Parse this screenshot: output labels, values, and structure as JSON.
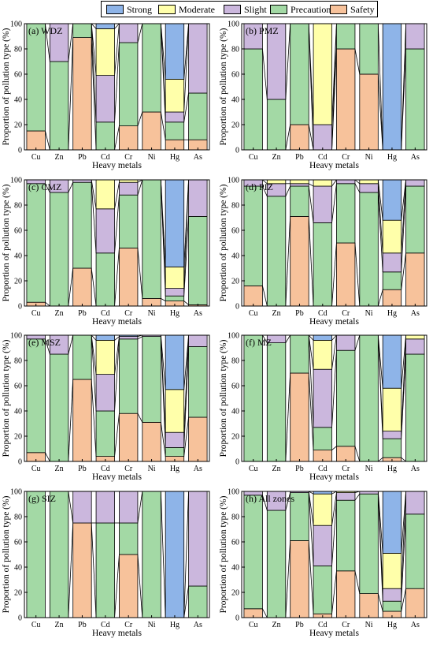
{
  "legend": {
    "items": [
      {
        "label": "Strong",
        "color": "#8EB4E8"
      },
      {
        "label": "Moderate",
        "color": "#FFFFAA"
      },
      {
        "label": "Slight",
        "color": "#CBB7DD"
      },
      {
        "label": "Precaution",
        "color": "#A3D9A5"
      },
      {
        "label": "Safety",
        "color": "#F7C29B"
      }
    ]
  },
  "chart_data": [
    {
      "type": "bar",
      "title": "(a) WDZ",
      "xlabel": "Heavy metals",
      "ylabel": "Proportion of pollution type (%)",
      "ylim": [
        0,
        100
      ],
      "yticks": [
        0,
        20,
        40,
        60,
        80,
        100
      ],
      "categories": [
        "Cu",
        "Zn",
        "Pb",
        "Cd",
        "Cr",
        "Ni",
        "Hg",
        "As"
      ],
      "series": [
        {
          "name": "Safety",
          "values": [
            15,
            0,
            89,
            0,
            19,
            30,
            8,
            8
          ]
        },
        {
          "name": "Precaution",
          "values": [
            85,
            70,
            11,
            22,
            66,
            70,
            14,
            37
          ]
        },
        {
          "name": "Slight",
          "values": [
            0,
            30,
            0,
            37,
            15,
            0,
            8,
            55
          ]
        },
        {
          "name": "Moderate",
          "values": [
            0,
            0,
            0,
            37,
            0,
            0,
            26,
            0
          ]
        },
        {
          "name": "Strong",
          "values": [
            0,
            0,
            0,
            4,
            0,
            0,
            44,
            0
          ]
        }
      ]
    },
    {
      "type": "bar",
      "title": "(b) PMZ",
      "xlabel": "Heavy metals",
      "ylabel": "Proportion of pollution type (%)",
      "ylim": [
        0,
        100
      ],
      "yticks": [
        0,
        20,
        40,
        60,
        80,
        100
      ],
      "categories": [
        "Cu",
        "Zn",
        "Pb",
        "Cd",
        "Cr",
        "Ni",
        "Hg",
        "As"
      ],
      "series": [
        {
          "name": "Safety",
          "values": [
            0,
            0,
            20,
            0,
            80,
            60,
            0,
            0
          ]
        },
        {
          "name": "Precaution",
          "values": [
            80,
            40,
            80,
            0,
            20,
            40,
            0,
            80
          ]
        },
        {
          "name": "Slight",
          "values": [
            20,
            60,
            0,
            20,
            0,
            0,
            0,
            20
          ]
        },
        {
          "name": "Moderate",
          "values": [
            0,
            0,
            0,
            80,
            0,
            0,
            0,
            0
          ]
        },
        {
          "name": "Strong",
          "values": [
            0,
            0,
            0,
            0,
            0,
            0,
            100,
            0
          ]
        }
      ]
    },
    {
      "type": "bar",
      "title": "(c) CMZ",
      "xlabel": "Heavy metals",
      "ylabel": "Proportion of pollution type (%)",
      "ylim": [
        0,
        100
      ],
      "yticks": [
        0,
        20,
        40,
        60,
        80,
        100
      ],
      "categories": [
        "Cu",
        "Zn",
        "Pb",
        "Cd",
        "Cr",
        "Ni",
        "Hg",
        "As"
      ],
      "series": [
        {
          "name": "Safety",
          "values": [
            3,
            0,
            30,
            0,
            46,
            6,
            4,
            1
          ]
        },
        {
          "name": "Precaution",
          "values": [
            94,
            90,
            68,
            42,
            42,
            94,
            4,
            70
          ]
        },
        {
          "name": "Slight",
          "values": [
            3,
            10,
            2,
            35,
            10,
            0,
            6,
            29
          ]
        },
        {
          "name": "Moderate",
          "values": [
            0,
            0,
            0,
            23,
            2,
            0,
            17,
            0
          ]
        },
        {
          "name": "Strong",
          "values": [
            0,
            0,
            0,
            0,
            0,
            0,
            69,
            0
          ]
        }
      ]
    },
    {
      "type": "bar",
      "title": "(d) PIZ",
      "xlabel": "Heavy metals",
      "ylabel": "Proportion of pollution type (%)",
      "ylim": [
        0,
        100
      ],
      "yticks": [
        0,
        20,
        40,
        60,
        80,
        100
      ],
      "categories": [
        "Cu",
        "Zn",
        "Pb",
        "Cd",
        "Cr",
        "Ni",
        "Hg",
        "As"
      ],
      "series": [
        {
          "name": "Safety",
          "values": [
            16,
            0,
            71,
            0,
            50,
            0,
            13,
            42
          ]
        },
        {
          "name": "Precaution",
          "values": [
            79,
            87,
            24,
            66,
            47,
            90,
            14,
            53
          ]
        },
        {
          "name": "Slight",
          "values": [
            5,
            10,
            2,
            29,
            3,
            7,
            15,
            5
          ]
        },
        {
          "name": "Moderate",
          "values": [
            0,
            3,
            3,
            5,
            0,
            3,
            26,
            0
          ]
        },
        {
          "name": "Strong",
          "values": [
            0,
            0,
            0,
            0,
            0,
            0,
            32,
            0
          ]
        }
      ]
    },
    {
      "type": "bar",
      "title": "(e) MSZ",
      "xlabel": "Heavy metals",
      "ylabel": "Proportion of pollution type (%)",
      "ylim": [
        0,
        100
      ],
      "yticks": [
        0,
        20,
        40,
        60,
        80,
        100
      ],
      "categories": [
        "Cu",
        "Zn",
        "Pb",
        "Cd",
        "Cr",
        "Ni",
        "Hg",
        "As"
      ],
      "series": [
        {
          "name": "Safety",
          "values": [
            7,
            0,
            65,
            4,
            38,
            31,
            4,
            35
          ]
        },
        {
          "name": "Precaution",
          "values": [
            90,
            85,
            35,
            36,
            59,
            68,
            7,
            56
          ]
        },
        {
          "name": "Slight",
          "values": [
            3,
            15,
            0,
            29,
            2,
            1,
            12,
            9
          ]
        },
        {
          "name": "Moderate",
          "values": [
            0,
            0,
            0,
            27,
            0,
            0,
            34,
            0
          ]
        },
        {
          "name": "Strong",
          "values": [
            0,
            0,
            0,
            4,
            1,
            0,
            43,
            0
          ]
        }
      ]
    },
    {
      "type": "bar",
      "title": "(f) MZ",
      "xlabel": "Heavy metals",
      "ylabel": "Proportion of pollution type (%)",
      "ylim": [
        0,
        100
      ],
      "yticks": [
        0,
        20,
        40,
        60,
        80,
        100
      ],
      "categories": [
        "Cu",
        "Zn",
        "Pb",
        "Cd",
        "Cr",
        "Ni",
        "Hg",
        "As"
      ],
      "series": [
        {
          "name": "Safety",
          "values": [
            0,
            0,
            70,
            9,
            12,
            0,
            3,
            0
          ]
        },
        {
          "name": "Precaution",
          "values": [
            100,
            94,
            30,
            18,
            76,
            100,
            15,
            85
          ]
        },
        {
          "name": "Slight",
          "values": [
            0,
            6,
            0,
            46,
            12,
            0,
            6,
            12
          ]
        },
        {
          "name": "Moderate",
          "values": [
            0,
            0,
            0,
            23,
            0,
            0,
            34,
            3
          ]
        },
        {
          "name": "Strong",
          "values": [
            0,
            0,
            0,
            4,
            0,
            0,
            42,
            0
          ]
        }
      ]
    },
    {
      "type": "bar",
      "title": "(g) SIZ",
      "xlabel": "Heavy metals",
      "ylabel": "Proportion of pollution type (%)",
      "ylim": [
        0,
        100
      ],
      "yticks": [
        0,
        20,
        40,
        60,
        80,
        100
      ],
      "categories": [
        "Cu",
        "Zn",
        "Pb",
        "Cd",
        "Cr",
        "Ni",
        "Hg",
        "As"
      ],
      "series": [
        {
          "name": "Safety",
          "values": [
            0,
            0,
            75,
            0,
            50,
            0,
            0,
            0
          ]
        },
        {
          "name": "Precaution",
          "values": [
            100,
            100,
            0,
            75,
            25,
            100,
            0,
            25
          ]
        },
        {
          "name": "Slight",
          "values": [
            0,
            0,
            25,
            25,
            25,
            0,
            0,
            75
          ]
        },
        {
          "name": "Moderate",
          "values": [
            0,
            0,
            0,
            0,
            0,
            0,
            0,
            0
          ]
        },
        {
          "name": "Strong",
          "values": [
            0,
            0,
            0,
            0,
            0,
            0,
            100,
            0
          ]
        }
      ]
    },
    {
      "type": "bar",
      "title": "(h) All zones",
      "xlabel": "Heavy metals",
      "ylabel": "Proportion of pollution type (%)",
      "ylim": [
        0,
        100
      ],
      "yticks": [
        0,
        20,
        40,
        60,
        80,
        100
      ],
      "categories": [
        "Cu",
        "Zn",
        "Pb",
        "Cd",
        "Cr",
        "Ni",
        "Hg",
        "As"
      ],
      "series": [
        {
          "name": "Safety",
          "values": [
            7,
            0,
            61,
            3,
            37,
            19,
            5,
            23
          ]
        },
        {
          "name": "Precaution",
          "values": [
            90,
            85,
            38,
            38,
            56,
            79,
            8,
            59
          ]
        },
        {
          "name": "Slight",
          "values": [
            3,
            15,
            1,
            32,
            6,
            2,
            10,
            18
          ]
        },
        {
          "name": "Moderate",
          "values": [
            0,
            0,
            0,
            25,
            1,
            0,
            28,
            0
          ]
        },
        {
          "name": "Strong",
          "values": [
            0,
            0,
            0,
            2,
            0,
            0,
            49,
            0
          ]
        }
      ]
    }
  ]
}
